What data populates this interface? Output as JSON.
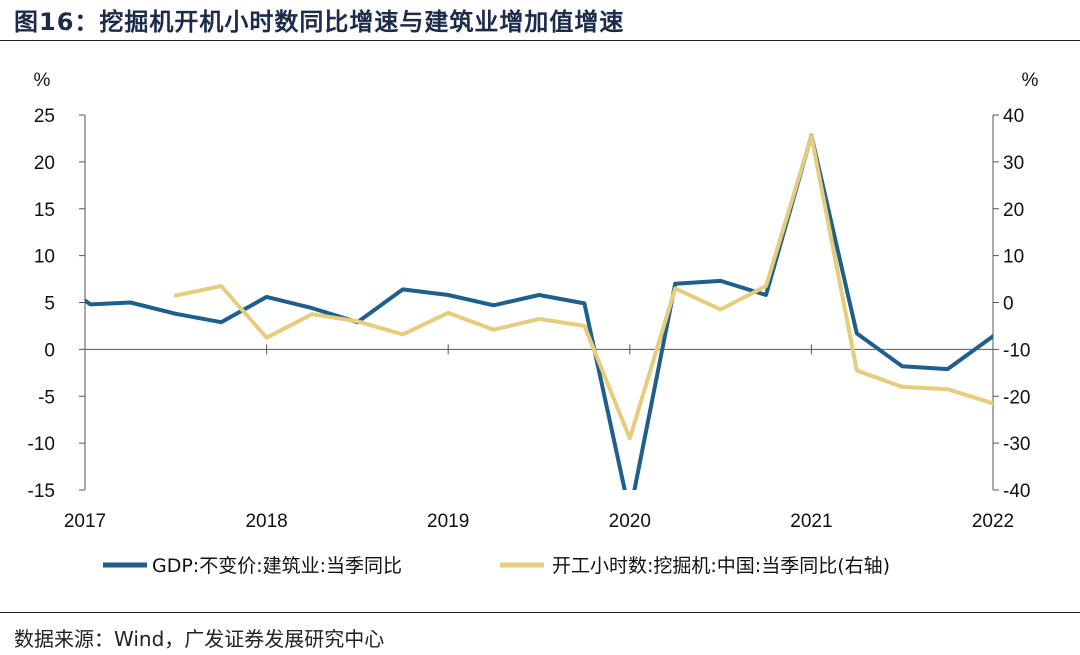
{
  "header": {
    "title": "图16：挖掘机开机小时数同比增速与建筑业增加值增速"
  },
  "footer": {
    "source": "数据来源：Wind，广发证券发展研究中心"
  },
  "chart_data": {
    "type": "line",
    "title": "图16：挖掘机开机小时数同比增速与建筑业增加值增速",
    "xlabel": "",
    "ylabel_left": "%",
    "ylabel_right": "%",
    "x_ticks": [
      "2017",
      "2018",
      "2019",
      "2020",
      "2021",
      "2022"
    ],
    "x_range": [
      2017.0,
      2022.0
    ],
    "y_left_range": [
      -15,
      25
    ],
    "y_left_ticks": [
      25,
      20,
      15,
      10,
      5,
      0,
      -5,
      -10,
      -15
    ],
    "y_right_range": [
      -40,
      40
    ],
    "y_right_ticks": [
      40,
      30,
      20,
      10,
      0,
      -10,
      -20,
      -30,
      -40
    ],
    "grid": false,
    "legend_position": "bottom",
    "series": [
      {
        "name": "GDP:不变价:建筑业:当季同比",
        "axis": "left",
        "color": "#1f5f8b",
        "x": [
          2017.0,
          2017.03,
          2017.25,
          2017.5,
          2017.75,
          2018.0,
          2018.25,
          2018.5,
          2018.75,
          2019.0,
          2019.25,
          2019.5,
          2019.75,
          2020.0,
          2020.25,
          2020.5,
          2020.75,
          2021.0,
          2021.25,
          2021.5,
          2021.75,
          2022.0
        ],
        "values": [
          5.2,
          4.8,
          5.0,
          3.8,
          2.9,
          5.6,
          4.4,
          2.9,
          6.4,
          5.8,
          4.7,
          5.8,
          4.9,
          -17.5,
          7.0,
          7.3,
          5.8,
          22.8,
          1.7,
          -1.8,
          -2.1,
          1.4
        ]
      },
      {
        "name": "开工小时数:挖掘机:中国:当季同比(右轴)",
        "axis": "right",
        "color": "#e6cc7d",
        "x": [
          2017.5,
          2017.75,
          2018.0,
          2018.25,
          2018.5,
          2018.75,
          2019.0,
          2019.25,
          2019.5,
          2019.75,
          2020.0,
          2020.25,
          2020.5,
          2020.75,
          2021.0,
          2021.25,
          2021.5,
          2021.75,
          2022.0
        ],
        "values": [
          1.5,
          3.5,
          -7.5,
          -2.5,
          -4.0,
          -6.8,
          -2.2,
          -5.8,
          -3.5,
          -5.0,
          -29.0,
          3.0,
          -1.5,
          3.5,
          35.5,
          -14.5,
          -18.0,
          -18.5,
          -21.5
        ]
      }
    ]
  }
}
